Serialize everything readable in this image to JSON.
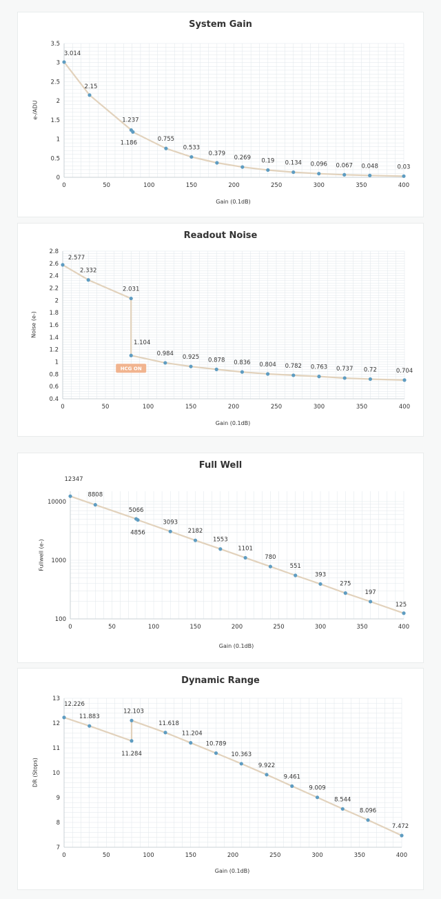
{
  "colors": {
    "line": "#e2d2bc",
    "marker": "#5e9cc1",
    "grid": "#dfe6ea",
    "text": "#333333",
    "badge": "#f1b48f"
  },
  "chart_data": [
    {
      "type": "line",
      "title": "System Gain",
      "xlabel": "Gain (0.1dB)",
      "ylabel": "e-/ADU",
      "xlim": [
        0,
        400
      ],
      "ylim": [
        0,
        3.5
      ],
      "yscale": "linear",
      "xticks": [
        "0",
        "50",
        "100",
        "150",
        "200",
        "250",
        "300",
        "350",
        "400"
      ],
      "yticks": [
        "0",
        "0.5",
        "1",
        "1.5",
        "2",
        "2.5",
        "3",
        "3.5"
      ],
      "grid": true,
      "x": [
        0,
        30,
        79,
        81,
        120,
        150,
        180,
        210,
        240,
        270,
        300,
        330,
        360,
        400
      ],
      "y": [
        3.014,
        2.15,
        1.237,
        1.186,
        0.755,
        0.533,
        0.379,
        0.269,
        0.19,
        0.134,
        0.096,
        0.067,
        0.048,
        0.03
      ],
      "labels": [
        "3.014",
        "2.15",
        "1.237",
        "1.186",
        "0.755",
        "0.533",
        "0.379",
        "0.269",
        "0.19",
        "0.134",
        "0.096",
        "0.067",
        "0.048",
        "0.03"
      ]
    },
    {
      "type": "line",
      "title": "Readout Noise",
      "xlabel": "Gain (0.1dB)",
      "ylabel": "Noise (e-)",
      "xlim": [
        0,
        400
      ],
      "ylim": [
        0.4,
        2.8
      ],
      "yscale": "linear",
      "xticks": [
        "0",
        "50",
        "100",
        "150",
        "200",
        "250",
        "300",
        "350",
        "400"
      ],
      "yticks": [
        "0.4",
        "0.6",
        "0.8",
        "1",
        "1.2",
        "1.4",
        "1.6",
        "1.8",
        "2",
        "2.2",
        "2.4",
        "2.6",
        "2.8"
      ],
      "grid": true,
      "x": [
        0,
        30,
        80,
        80,
        120,
        150,
        180,
        210,
        240,
        270,
        300,
        330,
        360,
        400
      ],
      "y": [
        2.577,
        2.332,
        2.031,
        1.104,
        0.984,
        0.925,
        0.878,
        0.836,
        0.804,
        0.782,
        0.763,
        0.737,
        0.72,
        0.704
      ],
      "labels": [
        "2.577",
        "2.332",
        "2.031",
        "1.104",
        "0.984",
        "0.925",
        "0.878",
        "0.836",
        "0.804",
        "0.782",
        "0.763",
        "0.737",
        "0.72",
        "0.704"
      ],
      "annotation": "HCG ON"
    },
    {
      "type": "line",
      "title": "Full Well",
      "xlabel": "Gain (0.1dB)",
      "ylabel": "Fullwell (e-)",
      "xlim": [
        0,
        400
      ],
      "ylim": [
        100,
        15000
      ],
      "yscale": "log",
      "xticks": [
        "0",
        "50",
        "100",
        "150",
        "200",
        "250",
        "300",
        "350",
        "400"
      ],
      "yticks": [
        "100",
        "1000",
        "10000"
      ],
      "grid": true,
      "x": [
        0,
        30,
        79,
        81,
        120,
        150,
        180,
        210,
        240,
        270,
        300,
        330,
        360,
        400
      ],
      "y": [
        12347,
        8808,
        5066,
        4856,
        3093,
        2182,
        1553,
        1101,
        780,
        551,
        393,
        275,
        197,
        125
      ],
      "labels": [
        "12347",
        "8808",
        "5066",
        "4856",
        "3093",
        "2182",
        "1553",
        "1101",
        "780",
        "551",
        "393",
        "275",
        "197",
        "125"
      ]
    },
    {
      "type": "line",
      "title": "Dynamic Range",
      "xlabel": "Gain (0.1dB)",
      "ylabel": "DR (Stops)",
      "xlim": [
        0,
        400
      ],
      "ylim": [
        7,
        13
      ],
      "yscale": "linear",
      "xticks": [
        "0",
        "50",
        "100",
        "150",
        "200",
        "250",
        "300",
        "350",
        "400"
      ],
      "yticks": [
        "7",
        "8",
        "9",
        "10",
        "11",
        "12",
        "13"
      ],
      "grid": true,
      "x": [
        0,
        30,
        80,
        80,
        120,
        150,
        180,
        210,
        240,
        270,
        300,
        330,
        360,
        400
      ],
      "y": [
        12.226,
        11.883,
        11.284,
        12.103,
        11.618,
        11.204,
        10.789,
        10.363,
        9.922,
        9.461,
        9.009,
        8.544,
        8.096,
        7.472
      ],
      "labels": [
        "12.226",
        "11.883",
        "11.284",
        "12.103",
        "11.618",
        "11.204",
        "10.789",
        "10.363",
        "9.922",
        "9.461",
        "9.009",
        "8.544",
        "8.096",
        "7.472"
      ]
    }
  ]
}
